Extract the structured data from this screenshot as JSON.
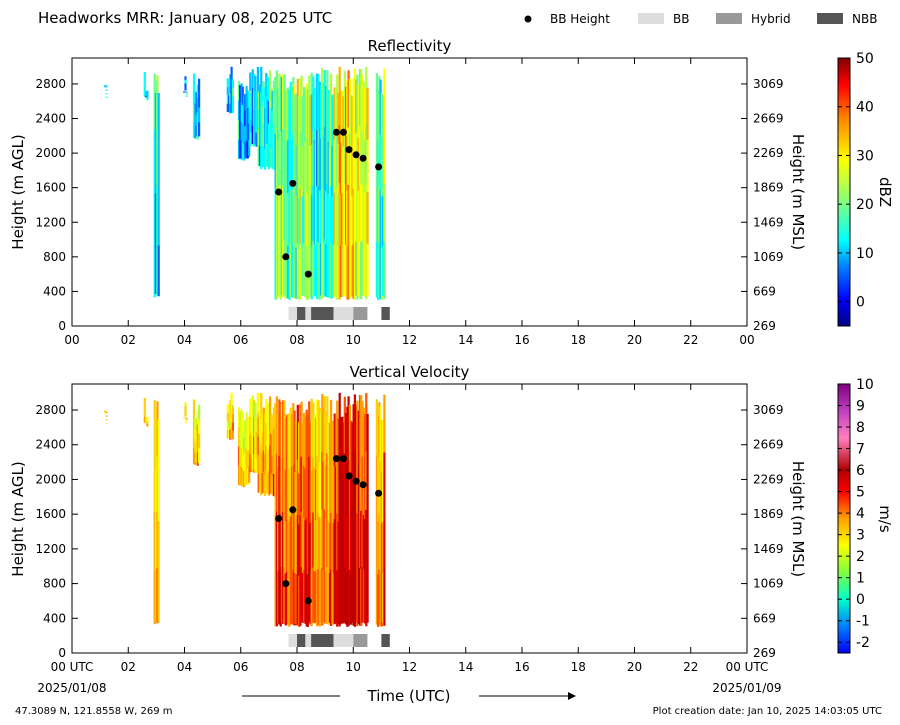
{
  "header": {
    "title": "Headworks MRR:  January 08, 2025 UTC",
    "legend": [
      {
        "label": "BB Height",
        "kind": "dot",
        "color": "#000000"
      },
      {
        "label": "BB",
        "kind": "box",
        "color": "#dddddd"
      },
      {
        "label": "Hybrid",
        "kind": "box",
        "color": "#999999"
      },
      {
        "label": "NBB",
        "kind": "box",
        "color": "#555555"
      }
    ]
  },
  "footer": {
    "location": "47.3089 N, 121.8558 W, 269 m",
    "created": "Plot creation date: Jan 10, 2025 14:03:05 UTC",
    "xlabel": "Time (UTC)",
    "start_date": "2025/01/08",
    "end_date": "2025/01/09"
  },
  "chart_data": [
    {
      "type": "heatmap",
      "title": "Reflectivity",
      "ylabel": "Height (m AGL)",
      "y2label": "Height (m MSL)",
      "xlim": [
        0,
        24
      ],
      "ylim": [
        0,
        3100
      ],
      "xticks": [
        "00",
        "02",
        "04",
        "06",
        "08",
        "10",
        "12",
        "14",
        "16",
        "18",
        "20",
        "22",
        "00"
      ],
      "yticks": [
        0,
        400,
        800,
        1200,
        1600,
        2000,
        2400,
        2800
      ],
      "y2ticks": [
        "269",
        "669",
        "1069",
        "1469",
        "1869",
        "2269",
        "2669",
        "3069"
      ],
      "colorbar": {
        "label": "dBZ",
        "min": -5,
        "max": 50,
        "ticks": [
          0,
          10,
          20,
          30,
          40,
          50
        ],
        "colors": [
          "#000080",
          "#0000ff",
          "#0080ff",
          "#00ffff",
          "#80ff80",
          "#ffff00",
          "#ff8000",
          "#ff0000",
          "#800000"
        ]
      },
      "bb_height_points": [
        [
          7.35,
          1550
        ],
        [
          7.6,
          800
        ],
        [
          7.85,
          1650
        ],
        [
          8.4,
          600
        ],
        [
          9.4,
          2240
        ],
        [
          9.65,
          2240
        ],
        [
          9.85,
          2040
        ],
        [
          10.1,
          1980
        ],
        [
          10.35,
          1940
        ],
        [
          10.9,
          1840
        ]
      ],
      "bb_classification": [
        {
          "start": 7.7,
          "end": 8.0,
          "class": "BB"
        },
        {
          "start": 8.0,
          "end": 8.3,
          "class": "NBB"
        },
        {
          "start": 8.3,
          "end": 8.5,
          "class": "BB"
        },
        {
          "start": 8.5,
          "end": 9.3,
          "class": "NBB"
        },
        {
          "start": 9.3,
          "end": 10.0,
          "class": "BB"
        },
        {
          "start": 10.0,
          "end": 10.5,
          "class": "Hybrid"
        },
        {
          "start": 11.0,
          "end": 11.3,
          "class": "NBB"
        }
      ]
    },
    {
      "type": "heatmap",
      "title": "Vertical Velocity",
      "ylabel": "Height (m AGL)",
      "y2label": "Height (m MSL)",
      "xlim": [
        0,
        24
      ],
      "ylim": [
        0,
        3100
      ],
      "xticks": [
        "00 UTC",
        "02",
        "04",
        "06",
        "08",
        "10",
        "12",
        "14",
        "16",
        "18",
        "20",
        "22",
        "00 UTC"
      ],
      "yticks": [
        0,
        400,
        800,
        1200,
        1600,
        2000,
        2400,
        2800
      ],
      "y2ticks": [
        "269",
        "669",
        "1069",
        "1469",
        "1869",
        "2269",
        "2669",
        "3069"
      ],
      "colorbar": {
        "label": "m/s",
        "min": -2.5,
        "max": 10,
        "ticks": [
          -2,
          -1,
          0,
          1,
          2,
          3,
          4,
          5,
          6,
          7,
          8,
          9,
          10
        ],
        "colors": [
          "#0000ff",
          "#0080ff",
          "#00ffcc",
          "#80ff40",
          "#ffff00",
          "#ffa000",
          "#ff0000",
          "#b00000",
          "#ff80c0",
          "#c040c0",
          "#800080"
        ]
      },
      "bb_height_points": [
        [
          7.35,
          1550
        ],
        [
          7.6,
          800
        ],
        [
          7.85,
          1650
        ],
        [
          8.4,
          600
        ],
        [
          9.4,
          2240
        ],
        [
          9.65,
          2240
        ],
        [
          9.85,
          2040
        ],
        [
          10.1,
          1980
        ],
        [
          10.35,
          1940
        ],
        [
          10.9,
          1840
        ]
      ],
      "bb_classification": [
        {
          "start": 7.7,
          "end": 8.0,
          "class": "BB"
        },
        {
          "start": 8.0,
          "end": 8.3,
          "class": "NBB"
        },
        {
          "start": 8.3,
          "end": 8.5,
          "class": "BB"
        },
        {
          "start": 8.5,
          "end": 9.3,
          "class": "NBB"
        },
        {
          "start": 9.3,
          "end": 10.0,
          "class": "BB"
        },
        {
          "start": 10.0,
          "end": 10.5,
          "class": "Hybrid"
        },
        {
          "start": 11.0,
          "end": 11.3,
          "class": "NBB"
        }
      ]
    }
  ]
}
